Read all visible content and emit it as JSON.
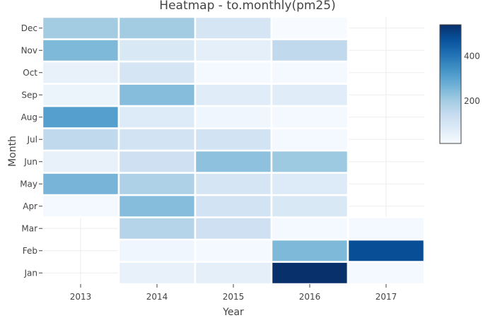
{
  "chart_data": {
    "type": "heatmap",
    "title": "Heatmap - to.monthly(pm25)",
    "xlabel": "Year",
    "ylabel": "Month",
    "x": [
      "2013",
      "2014",
      "2015",
      "2016",
      "2017"
    ],
    "y": [
      "Jan",
      "Feb",
      "Mar",
      "Apr",
      "May",
      "Jun",
      "Jul",
      "Aug",
      "Sep",
      "Oct",
      "Nov",
      "Dec"
    ],
    "z": [
      [
        null,
        50,
        60,
        540,
        20
      ],
      [
        null,
        30,
        20,
        250,
        480
      ],
      [
        null,
        170,
        120,
        20,
        20
      ],
      [
        20,
        240,
        110,
        90,
        null
      ],
      [
        260,
        180,
        100,
        80,
        null
      ],
      [
        50,
        120,
        230,
        210,
        null
      ],
      [
        150,
        110,
        110,
        20,
        null
      ],
      [
        310,
        80,
        30,
        20,
        null
      ],
      [
        40,
        240,
        70,
        70,
        null
      ],
      [
        50,
        100,
        20,
        20,
        null
      ],
      [
        250,
        90,
        60,
        150,
        null
      ],
      [
        200,
        200,
        100,
        10,
        null
      ]
    ],
    "colorscale": [
      "#f7fbff",
      "#deebf7",
      "#c6dbef",
      "#9ecae1",
      "#6baed6",
      "#4292c6",
      "#2171b5",
      "#08519c",
      "#08306b"
    ],
    "zrange": [
      10,
      540
    ],
    "colorbar_ticks": [
      200,
      400
    ],
    "grid": true
  }
}
